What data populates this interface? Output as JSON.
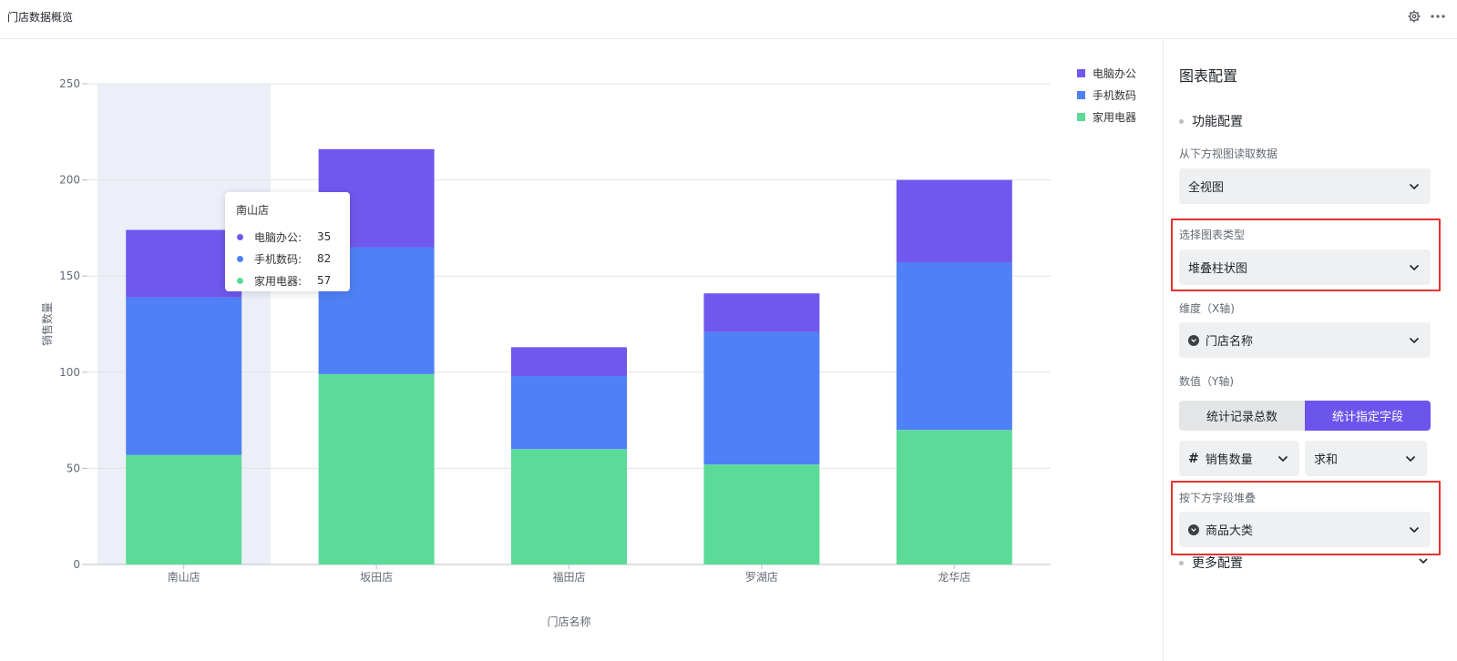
{
  "header": {
    "title": "门店数据概览",
    "icons": [
      "gear-icon",
      "more-icon"
    ]
  },
  "colors": {
    "computer": "#7058ee",
    "phone": "#5080f5",
    "appliance": "#5cda98",
    "hover_band": "#eceff8",
    "highlight": "#e53030"
  },
  "chart_data": {
    "type": "bar",
    "stacked": true,
    "categories": [
      "南山店",
      "坂田店",
      "福田店",
      "罗湖店",
      "龙华店"
    ],
    "series": [
      {
        "name": "家用电器",
        "values": [
          57,
          99,
          60,
          52,
          70
        ]
      },
      {
        "name": "手机数码",
        "values": [
          82,
          66,
          38,
          69,
          87
        ]
      },
      {
        "name": "电脑办公",
        "values": [
          35,
          51,
          15,
          20,
          43
        ]
      }
    ],
    "xlabel": "门店名称",
    "ylabel": "销售数量",
    "ylim": [
      0,
      250
    ],
    "yticks": [
      0,
      50,
      100,
      150,
      200,
      250
    ],
    "grid": true,
    "legend_position": "top-right",
    "legend": [
      "电脑办公",
      "手机数码",
      "家用电器"
    ],
    "hovered_category": "南山店"
  },
  "tooltip": {
    "title": "南山店",
    "rows": [
      {
        "name": "电脑办公:",
        "value": "35"
      },
      {
        "name": "手机数码:",
        "value": "82"
      },
      {
        "name": "家用电器:",
        "value": "57"
      }
    ]
  },
  "panel": {
    "title": "图表配置",
    "section_function": "功能配置",
    "view_label": "从下方视图读取数据",
    "view_value": "全视图",
    "chart_type_label": "选择图表类型",
    "chart_type_value": "堆叠柱状图",
    "dimension_label": "维度（X轴)",
    "dimension_value": "门店名称",
    "value_label": "数值（Y轴)",
    "value_mode_off": "统计记录总数",
    "value_mode_on": "统计指定字段",
    "value_field": "销售数量",
    "aggregate": "求和",
    "stack_label": "按下方字段堆叠",
    "stack_value": "商品大类",
    "section_more": "更多配置"
  }
}
